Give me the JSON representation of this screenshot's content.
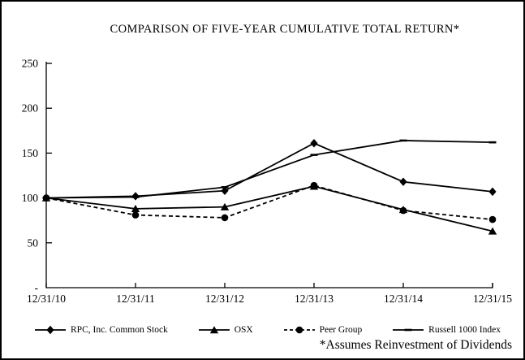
{
  "title": "COMPARISON OF FIVE-YEAR CUMULATIVE TOTAL RETURN*",
  "footnote": "*Assumes Reinvestment of Dividends",
  "chart_data": {
    "type": "line",
    "title": "COMPARISON OF FIVE-YEAR CUMULATIVE TOTAL RETURN*",
    "categories": [
      "12/31/10",
      "12/31/11",
      "12/31/12",
      "12/31/13",
      "12/31/14",
      "12/31/15"
    ],
    "series": [
      {
        "name": "RPC, Inc. Common Stock",
        "marker": "diamond",
        "line": "solid",
        "values": [
          100,
          102,
          108,
          161,
          118,
          107
        ]
      },
      {
        "name": "OSX",
        "marker": "triangle",
        "line": "solid",
        "values": [
          100,
          88,
          90,
          113,
          87,
          63
        ]
      },
      {
        "name": "Peer Group",
        "marker": "circle",
        "line": "dashed",
        "values": [
          100,
          81,
          78,
          114,
          86,
          76
        ]
      },
      {
        "name": "Russell 1000 Index",
        "marker": "dash",
        "line": "solid",
        "values": [
          100,
          101,
          112,
          148,
          164,
          162
        ]
      }
    ],
    "xlabel": "",
    "ylabel": "",
    "ylim": [
      0,
      250
    ],
    "yticks": [
      250,
      200,
      150,
      100,
      50,
      0
    ],
    "ytick_labels": [
      "250",
      "200",
      "150",
      "100",
      "50",
      "-"
    ],
    "grid": false,
    "legend_position": "bottom",
    "colors": {
      "line": "#000000",
      "background": "#ffffff"
    }
  }
}
